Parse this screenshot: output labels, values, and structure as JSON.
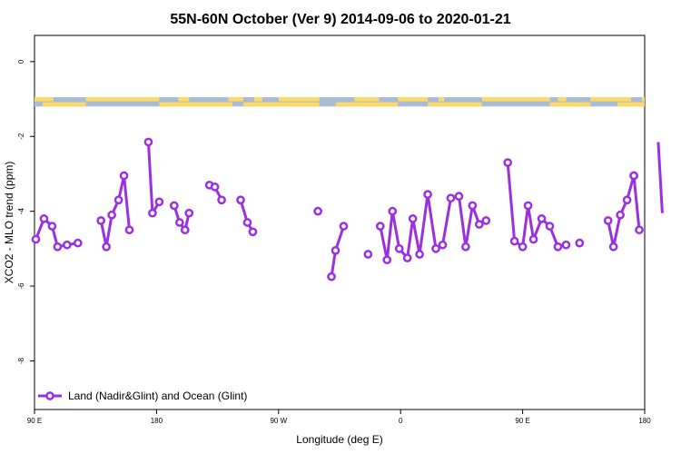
{
  "chart_data": {
    "type": "line",
    "title": "55N-60N October (Ver 9)   2014-09-06 to 2020-01-21",
    "xlabel": "Longitude (deg E)",
    "ylabel": "XCO2 - MLO trend (ppm)",
    "xlim": [
      90,
      540
    ],
    "ylim": [
      -9.3,
      0.7
    ],
    "x_ticks": [
      {
        "value": 90,
        "label": "90 E"
      },
      {
        "value": 180,
        "label": "180"
      },
      {
        "value": 270,
        "label": "90 W"
      },
      {
        "value": 360,
        "label": "0"
      },
      {
        "value": 450,
        "label": "90 E"
      },
      {
        "value": 540,
        "label": "180"
      }
    ],
    "y_ticks": [
      {
        "value": 0,
        "label": "0"
      },
      {
        "value": -2,
        "label": "-2"
      },
      {
        "value": -4,
        "label": "-4"
      },
      {
        "value": -6,
        "label": "-6"
      },
      {
        "value": -8,
        "label": "-8"
      }
    ],
    "land_ocean_band": {
      "y_top": -0.95,
      "y_bottom": -1.2,
      "land_color": "#FFD966",
      "ocean_color": "#A8BCD8"
    },
    "series": [
      {
        "name": "Land (Nadir&Glint) and Ocean (Glint)",
        "color": "#9B30E0",
        "segments": [
          [
            [
              91,
              -4.75
            ],
            [
              97,
              -4.2
            ],
            [
              103,
              -4.4
            ],
            [
              107,
              -4.95
            ],
            [
              114,
              -4.9
            ],
            [
              122,
              -4.85
            ]
          ],
          [
            [
              139,
              -4.25
            ],
            [
              143,
              -4.95
            ],
            [
              147,
              -4.1
            ],
            [
              152,
              -3.7
            ],
            [
              156,
              -3.05
            ],
            [
              160,
              -4.5
            ]
          ],
          [
            [
              174,
              -2.15
            ],
            [
              177,
              -4.05
            ],
            [
              182,
              -3.75
            ]
          ],
          [
            [
              193,
              -3.85
            ],
            [
              197,
              -4.3
            ],
            [
              201,
              -4.5
            ],
            [
              204,
              -4.05
            ]
          ],
          [
            [
              219,
              -3.3
            ],
            [
              223,
              -3.35
            ],
            [
              228,
              -3.7
            ]
          ],
          [
            [
              242,
              -3.7
            ],
            [
              247,
              -4.3
            ],
            [
              251,
              -4.55
            ]
          ],
          [
            [
              299,
              -4.0
            ]
          ],
          [
            [
              309,
              -5.75
            ],
            [
              312,
              -5.05
            ],
            [
              318,
              -4.4
            ]
          ],
          [
            [
              336,
              -5.15
            ]
          ],
          [
            [
              345,
              -4.4
            ],
            [
              350,
              -5.3
            ],
            [
              354,
              -4.0
            ],
            [
              359,
              -5.0
            ],
            [
              365,
              -5.25
            ],
            [
              369,
              -4.2
            ],
            [
              374,
              -5.15
            ],
            [
              380,
              -3.55
            ],
            [
              386,
              -5.0
            ],
            [
              391,
              -4.9
            ],
            [
              397,
              -3.65
            ],
            [
              403,
              -3.6
            ],
            [
              408,
              -4.95
            ],
            [
              413,
              -3.85
            ],
            [
              418,
              -4.35
            ],
            [
              423,
              -4.25
            ]
          ],
          [
            [
              439,
              -2.7
            ],
            [
              444,
              -4.8
            ],
            [
              450,
              -4.95
            ],
            [
              454,
              -3.85
            ],
            [
              458,
              -4.75
            ],
            [
              464,
              -4.2
            ],
            [
              470,
              -4.4
            ],
            [
              476,
              -4.95
            ],
            [
              482,
              -4.9
            ]
          ],
          [
            [
              492,
              -4.85
            ]
          ],
          [
            [
              513,
              -4.25
            ],
            [
              517,
              -4.95
            ],
            [
              522,
              -4.1
            ],
            [
              527,
              -3.7
            ],
            [
              532,
              -3.05
            ],
            [
              536,
              -4.5
            ]
          ],
          [
            [
              532,
              -3.05
            ]
          ],
          [
            [
              550,
              -2.15
            ],
            [
              553,
              -4.05
            ]
          ]
        ]
      }
    ],
    "legend": {
      "position": "bottom-left"
    },
    "grid": false
  }
}
